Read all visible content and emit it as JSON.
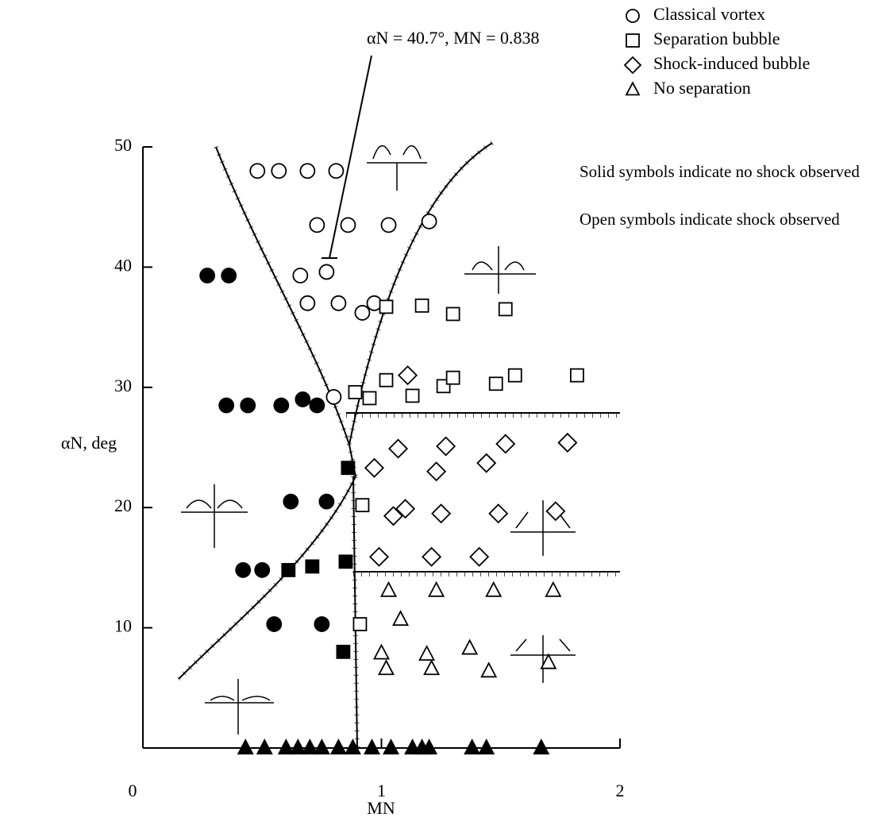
{
  "chart_data": {
    "type": "scatter",
    "x_label": "MN",
    "y_label": "αN, deg",
    "annotation": "αN = 40.7°, MN = 0.838",
    "notes": [
      "Solid symbols indicate no shock observed",
      "Open symbols indicate shock observed"
    ],
    "xlim": [
      0,
      2
    ],
    "ylim": [
      0,
      50
    ],
    "xticks": [
      0,
      1,
      2
    ],
    "yticks": [
      10,
      20,
      30,
      40,
      50
    ],
    "series": [
      {
        "name": "Classical vortex",
        "marker": "circle",
        "fill": "open",
        "x": [
          0.48,
          0.57,
          0.69,
          0.81,
          0.73,
          0.86,
          1.03,
          1.2,
          0.66,
          0.77,
          0.69,
          0.82,
          0.92,
          0.97,
          0.8
        ],
        "values": [
          48,
          48,
          48,
          48,
          43.5,
          43.5,
          43.5,
          43.8,
          39.3,
          39.6,
          37,
          37,
          36.2,
          37,
          29.2
        ]
      },
      {
        "name": "Separation bubble",
        "marker": "square",
        "fill": "open",
        "x": [
          1.02,
          1.17,
          1.3,
          1.52,
          0.89,
          0.95,
          1.02,
          1.13,
          1.26,
          1.3,
          1.48,
          1.56,
          1.82,
          0.92,
          0.91
        ],
        "values": [
          36.7,
          36.8,
          36.1,
          36.5,
          29.6,
          29.1,
          30.6,
          29.3,
          30.1,
          30.8,
          30.3,
          31,
          31,
          20.2,
          10.3
        ]
      },
      {
        "name": "Shock-induced bubble",
        "marker": "diamond",
        "fill": "open",
        "x": [
          1.11,
          0.97,
          1.07,
          1.27,
          1.44,
          1.52,
          1.78,
          1.23,
          1.05,
          1.1,
          1.25,
          1.49,
          1.73,
          0.99,
          1.21,
          1.41
        ],
        "values": [
          31,
          23.3,
          24.9,
          25.1,
          23.7,
          25.3,
          25.4,
          23,
          19.3,
          19.9,
          19.5,
          19.5,
          19.7,
          15.9,
          15.9,
          15.9
        ]
      },
      {
        "name": "No separation",
        "marker": "triangle",
        "fill": "open",
        "x": [
          1.03,
          1.23,
          1.47,
          1.72,
          1.08,
          1,
          1.02,
          1.19,
          1.21,
          1.37,
          1.45,
          1.7
        ],
        "values": [
          13.1,
          13.1,
          13.1,
          13.1,
          10.7,
          7.9,
          6.6,
          7.8,
          6.6,
          8.3,
          6.4,
          7.1
        ]
      },
      {
        "name": "Classical vortex",
        "marker": "circle",
        "fill": "solid",
        "x": [
          0.27,
          0.36,
          0.35,
          0.44,
          0.58,
          0.67,
          0.73,
          0.62,
          0.77,
          0.42,
          0.5,
          0.55,
          0.75
        ],
        "values": [
          39.3,
          39.3,
          28.5,
          28.5,
          28.5,
          29,
          28.5,
          20.5,
          20.5,
          14.8,
          14.8,
          10.3,
          10.3
        ]
      },
      {
        "name": "Separation bubble",
        "marker": "square",
        "fill": "solid",
        "x": [
          0.61,
          0.71,
          0.85,
          0.86,
          0.84
        ],
        "values": [
          14.8,
          15.1,
          15.5,
          23.3,
          8
        ]
      },
      {
        "name": "No separation",
        "marker": "triangle",
        "fill": "solid",
        "x": [
          0.43,
          0.51,
          0.6,
          0.65,
          0.7,
          0.75,
          0.82,
          0.88,
          0.96,
          1.04,
          1.13,
          1.17,
          1.2,
          1.38,
          1.44,
          1.67
        ],
        "values": [
          0,
          0,
          0,
          0,
          0,
          0,
          0,
          0,
          0,
          0,
          0,
          0,
          0,
          0,
          0,
          0
        ]
      }
    ]
  }
}
